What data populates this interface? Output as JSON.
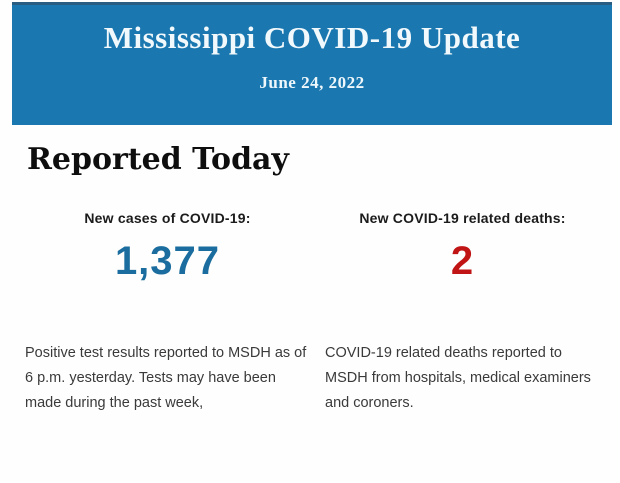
{
  "header": {
    "title": "Mississippi COVID-19 Update",
    "date": "June 24, 2022",
    "background_color": "#1a77af",
    "border_top_color": "#2a5d82",
    "text_color": "#f2f9fc"
  },
  "main": {
    "heading": "Reported Today",
    "stats": [
      {
        "label": "New cases of COVID-19:",
        "value": "1,377",
        "value_color": "#1a6d9e",
        "description": "Positive test results reported to MSDH as of 6 p.m. yesterday. Tests may have been made during the past week,"
      },
      {
        "label": "New COVID-19 related deaths:",
        "value": "2",
        "value_color": "#c11414",
        "description": "COVID-19 related deaths reported to MSDH from hospitals, medical examiners and coroners."
      }
    ],
    "body_text_color": "#3a3a3a"
  }
}
